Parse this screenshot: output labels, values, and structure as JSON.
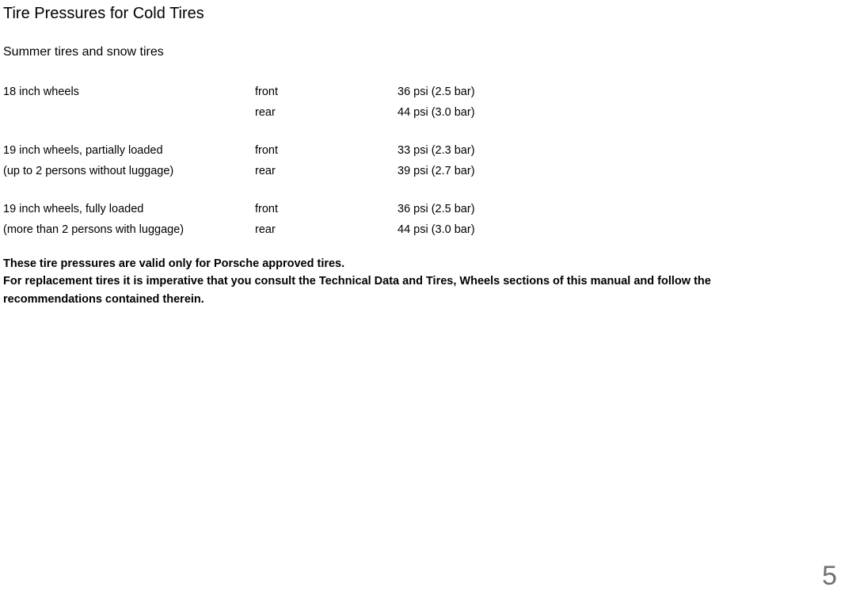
{
  "title": "Tire Pressures for Cold Tires",
  "subtitle": "Summer tires and snow tires",
  "table": {
    "groups": [
      {
        "wheel": "18 inch wheels",
        "sub": "",
        "rows": [
          {
            "pos": "front",
            "val": "36 psi (2.5 bar)"
          },
          {
            "pos": "rear",
            "val": "44 psi (3.0 bar)"
          }
        ]
      },
      {
        "wheel": "19 inch wheels, partially loaded",
        "sub": "(up to 2 persons without luggage)",
        "rows": [
          {
            "pos": "front",
            "val": "33 psi (2.3 bar)"
          },
          {
            "pos": "rear",
            "val": "39 psi (2.7 bar)"
          }
        ]
      },
      {
        "wheel": "19 inch wheels, fully loaded",
        "sub": "(more than 2 persons with luggage)",
        "rows": [
          {
            "pos": "front",
            "val": "36 psi (2.5 bar)"
          },
          {
            "pos": "rear",
            "val": "44 psi (3.0 bar)"
          }
        ]
      }
    ]
  },
  "note_line1": "These tire pressures are valid only for Porsche approved tires.",
  "note_line2": "For replacement tires it is imperative that you consult the Technical Data and Tires, Wheels sections of this manual and follow the recommendations contained therein.",
  "page_number": "5"
}
